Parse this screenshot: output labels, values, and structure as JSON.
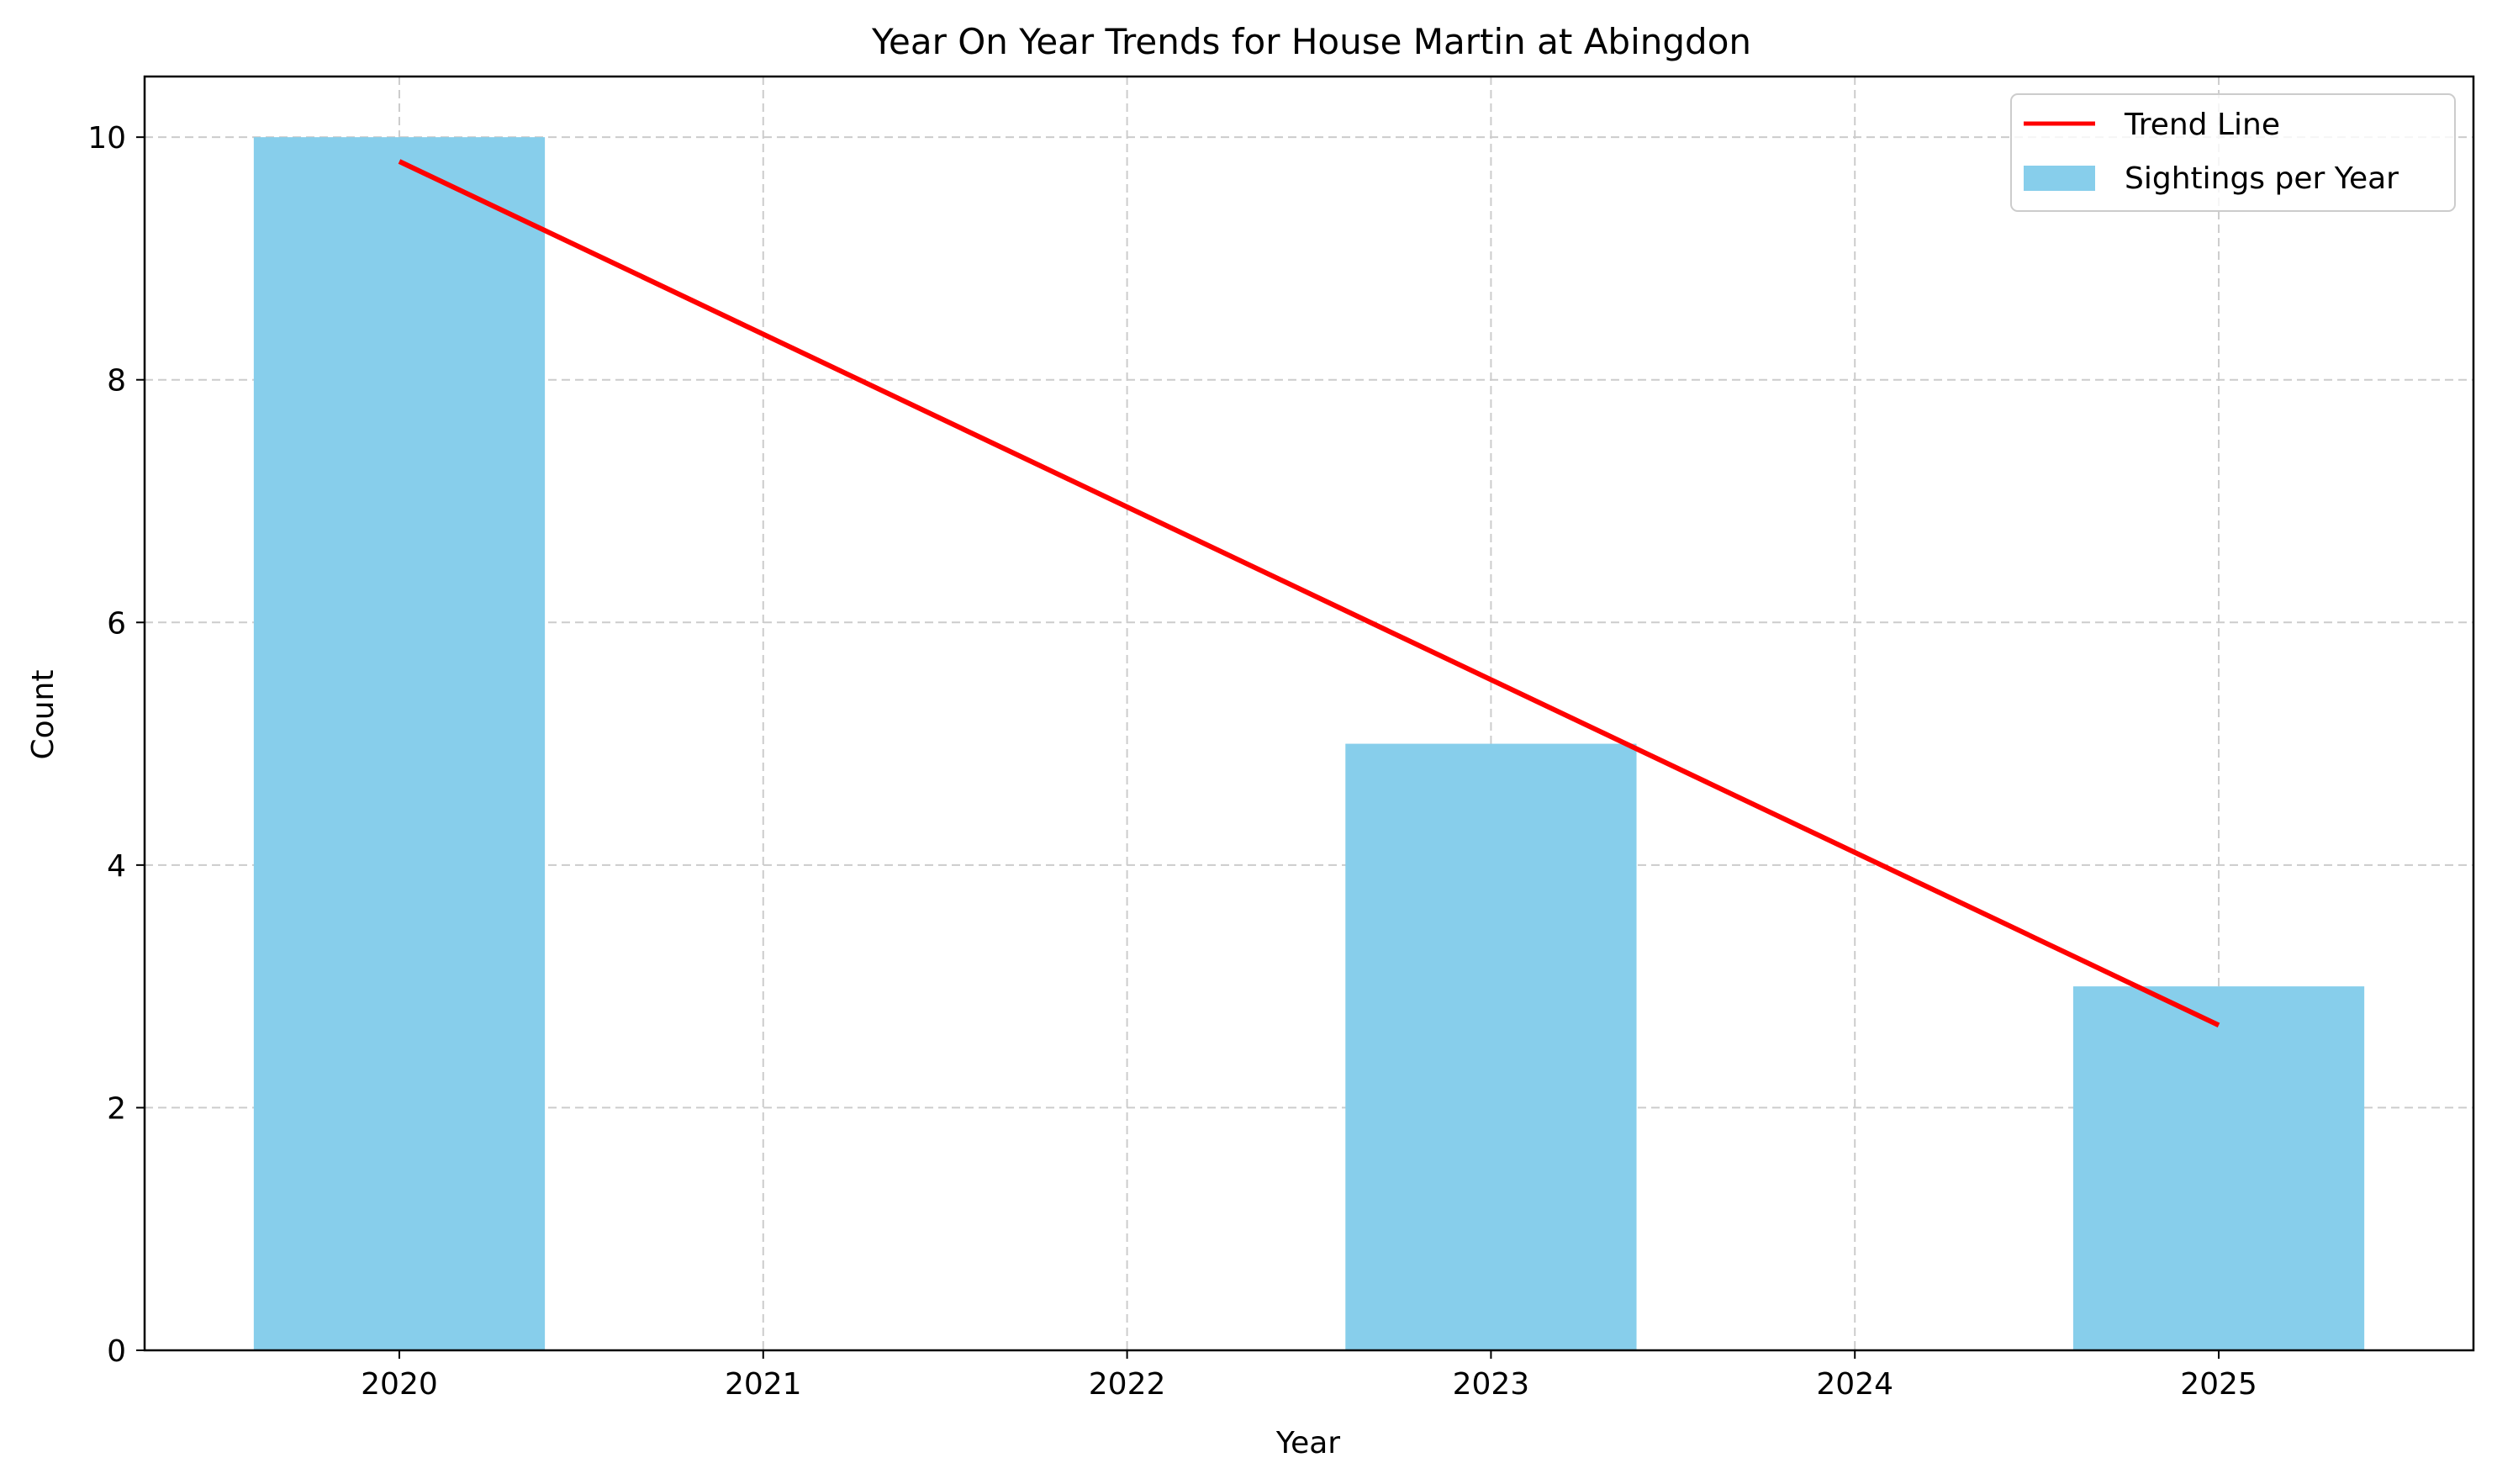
{
  "chart_data": {
    "type": "bar",
    "title": "Year On Year Trends for House Martin at Abingdon",
    "xlabel": "Year",
    "ylabel": "Count",
    "categories": [
      "2020",
      "2021",
      "2022",
      "2023",
      "2024",
      "2025"
    ],
    "x_ticks": [
      "2020",
      "2021",
      "2022",
      "2023",
      "2024",
      "2025"
    ],
    "y_ticks": [
      "0",
      "2",
      "4",
      "6",
      "8",
      "10"
    ],
    "xlim": [
      2019.3,
      2025.7
    ],
    "ylim": [
      0,
      10.5
    ],
    "grid": true,
    "legend_position": "top-right",
    "series": [
      {
        "name": "Sightings per Year",
        "type": "bar",
        "color": "#87CEEB",
        "x": [
          2020,
          2023,
          2025
        ],
        "values": [
          10,
          5,
          3
        ]
      },
      {
        "name": "Trend Line",
        "type": "line",
        "color": "#FF0000",
        "x": [
          2020,
          2025
        ],
        "values": [
          9.8,
          2.68
        ]
      }
    ]
  }
}
